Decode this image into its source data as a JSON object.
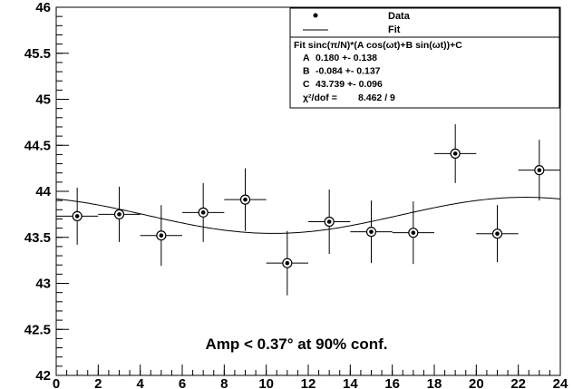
{
  "chart_data": {
    "type": "scatter",
    "xlim": [
      0,
      24
    ],
    "ylim": [
      42,
      46
    ],
    "x_ticks": [
      "0",
      "2",
      "4",
      "6",
      "8",
      "10",
      "12",
      "14",
      "16",
      "18",
      "20",
      "22",
      "24"
    ],
    "y_ticks": [
      "42",
      "42.5",
      "43",
      "43.5",
      "44",
      "44.5",
      "45",
      "45.5",
      "46"
    ],
    "grid": false,
    "legend_position": "top-right",
    "legend": {
      "data_label": "Data",
      "fit_label": "Fit"
    },
    "stats_box": {
      "title": "Fit sinc(π/N)*(A cos(ωt)+B sin(ωt))+C",
      "rows": [
        {
          "name": "A",
          "value": "0.180 +- 0.138"
        },
        {
          "name": "B",
          "value": "-0.084 +- 0.137"
        },
        {
          "name": "C",
          "value": "43.739 +- 0.096"
        }
      ],
      "chi2_label": "χ²/dof =",
      "chi2_value": "8.462 /   9"
    },
    "annotation": "Amp < 0.37° at 90% conf.",
    "data_points": [
      {
        "x": 1,
        "y": 43.73,
        "xerr": 1,
        "yerr": 0.31
      },
      {
        "x": 3,
        "y": 43.75,
        "xerr": 1,
        "yerr": 0.3
      },
      {
        "x": 5,
        "y": 43.52,
        "xerr": 1,
        "yerr": 0.33
      },
      {
        "x": 7,
        "y": 43.77,
        "xerr": 1,
        "yerr": 0.32
      },
      {
        "x": 9,
        "y": 43.91,
        "xerr": 1,
        "yerr": 0.34
      },
      {
        "x": 11,
        "y": 43.22,
        "xerr": 1,
        "yerr": 0.35
      },
      {
        "x": 13,
        "y": 43.67,
        "xerr": 1,
        "yerr": 0.35
      },
      {
        "x": 15,
        "y": 43.56,
        "xerr": 1,
        "yerr": 0.34
      },
      {
        "x": 17,
        "y": 43.55,
        "xerr": 1,
        "yerr": 0.34
      },
      {
        "x": 19,
        "y": 44.41,
        "xerr": 1,
        "yerr": 0.32
      },
      {
        "x": 21,
        "y": 43.54,
        "xerr": 1,
        "yerr": 0.31
      },
      {
        "x": 23,
        "y": 44.23,
        "xerr": 1,
        "yerr": 0.33
      }
    ],
    "fit": {
      "A": 0.18,
      "B": -0.084,
      "C": 43.739,
      "N": 12,
      "period": 24
    }
  }
}
